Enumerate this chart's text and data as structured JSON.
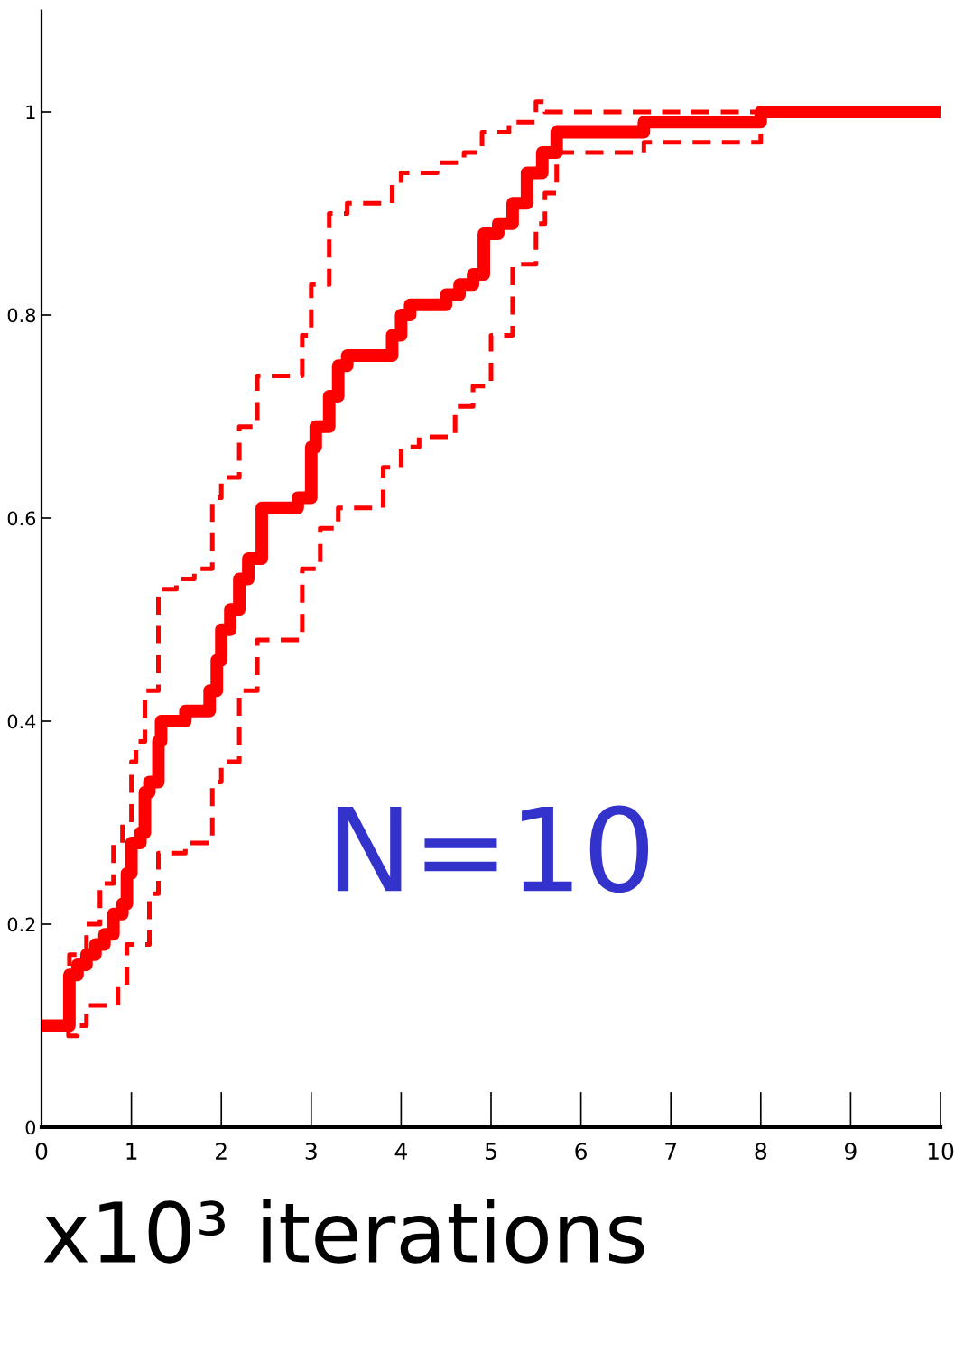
{
  "chart_data": {
    "type": "step",
    "xlabel": "x10³ iterations",
    "annotations": [
      "N=10"
    ],
    "xlim": [
      0,
      10
    ],
    "xticks": [
      0,
      1,
      2,
      3,
      4,
      5,
      6,
      7,
      8,
      9,
      10
    ],
    "ylim": [
      0,
      1.1
    ],
    "yticks": [
      0,
      0.2,
      0.4,
      0.6,
      0.8,
      1
    ],
    "grid": false,
    "marker": "none",
    "series": [
      {
        "color": "#ff0000",
        "line_style": "solid",
        "x": [
          0,
          0.31,
          0.4,
          0.5,
          0.6,
          0.7,
          0.8,
          0.9,
          0.95,
          1.0,
          1.1,
          1.15,
          1.2,
          1.3,
          1.33,
          1.6,
          1.87,
          1.95,
          2.0,
          2.1,
          2.2,
          2.3,
          2.45,
          2.85,
          3.0,
          3.05,
          3.2,
          3.3,
          3.4,
          3.9,
          4.0,
          4.1,
          4.5,
          4.65,
          4.8,
          4.92,
          5.08,
          5.24,
          5.4,
          5.57,
          5.73,
          6.7,
          8.0,
          10
        ],
        "values": [
          0.1,
          0.15,
          0.16,
          0.17,
          0.18,
          0.19,
          0.21,
          0.22,
          0.25,
          0.28,
          0.29,
          0.33,
          0.34,
          0.38,
          0.4,
          0.41,
          0.43,
          0.46,
          0.49,
          0.51,
          0.54,
          0.56,
          0.61,
          0.62,
          0.67,
          0.69,
          0.72,
          0.75,
          0.76,
          0.78,
          0.8,
          0.81,
          0.82,
          0.83,
          0.84,
          0.88,
          0.89,
          0.91,
          0.94,
          0.96,
          0.98,
          0.99,
          1.0,
          1.0
        ]
      },
      {
        "color": "#ff0000",
        "line_style": "dashed",
        "x": [
          0,
          0.31,
          0.5,
          0.65,
          0.8,
          0.9,
          1.0,
          1.05,
          1.15,
          1.3,
          1.5,
          1.7,
          1.9,
          2.0,
          2.2,
          2.4,
          2.9,
          3.0,
          3.2,
          3.4,
          3.9,
          4.0,
          4.4,
          4.7,
          4.9,
          5.2,
          5.5,
          5.6,
          8.0,
          10
        ],
        "values": [
          0.1,
          0.17,
          0.2,
          0.24,
          0.28,
          0.3,
          0.36,
          0.38,
          0.43,
          0.53,
          0.54,
          0.55,
          0.62,
          0.64,
          0.69,
          0.74,
          0.78,
          0.83,
          0.9,
          0.91,
          0.93,
          0.94,
          0.95,
          0.96,
          0.98,
          0.99,
          1.01,
          1.0,
          1.0,
          1.0
        ]
      },
      {
        "color": "#ff0000",
        "line_style": "dashed",
        "x": [
          0,
          0.3,
          0.4,
          0.5,
          0.85,
          0.95,
          1.2,
          1.3,
          1.6,
          1.9,
          2.0,
          2.2,
          2.4,
          2.9,
          3.1,
          3.3,
          3.8,
          4.0,
          4.2,
          4.6,
          4.8,
          5.0,
          5.24,
          5.5,
          5.6,
          5.73,
          6.7,
          8.0,
          10
        ],
        "values": [
          0.1,
          0.09,
          0.1,
          0.12,
          0.14,
          0.18,
          0.23,
          0.27,
          0.28,
          0.34,
          0.36,
          0.43,
          0.48,
          0.55,
          0.59,
          0.61,
          0.65,
          0.67,
          0.68,
          0.71,
          0.73,
          0.78,
          0.85,
          0.89,
          0.92,
          0.96,
          0.97,
          1.0,
          1.0
        ]
      }
    ]
  }
}
